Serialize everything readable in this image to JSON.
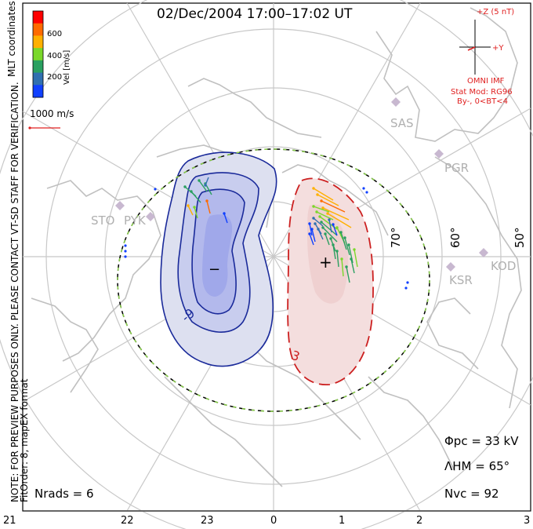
{
  "title": "02/Dec/2004  17:00–17:02  UT",
  "colorbar": {
    "label": "Vel [m/s]",
    "ticks": [
      "600",
      "400",
      "200"
    ],
    "colors": [
      "#ff0000",
      "#ff6a00",
      "#ffb000",
      "#7ad82a",
      "#2aa060",
      "#3070b0",
      "#1040ff"
    ]
  },
  "mlt_label": "MLT coordinates",
  "ref_vector_label": "1000 m/s",
  "imf": {
    "z_label": "+Z (5 nT)",
    "y_label": "+Y",
    "source": "OMNI IMF",
    "model": "Stat Mod: RG96",
    "condition": "By-, 0<BT<4"
  },
  "stations": [
    "SAS",
    "PGR",
    "STO",
    "PYK",
    "KOD",
    "KSR"
  ],
  "lat_labels": [
    "70°",
    "60°",
    "50°"
  ],
  "contours": {
    "negative_label": "-9",
    "positive_label": "3",
    "min_marker": "−",
    "max_marker": "+"
  },
  "stats": {
    "phi_pc": "Φpc = 33 kV",
    "lambda_hm": "ΛHM = 65°",
    "n_vc": "Nvc = 92",
    "n_rads": "Nrads = 6"
  },
  "mlt_ticks": [
    "21",
    "22",
    "23",
    "0",
    "1",
    "2",
    "3"
  ],
  "notes": {
    "preview": "NOTE: FOR PREVIEW PURPOSES ONLY. PLEASE CONTACT VT-SD STAFF FOR VERIFICATION.",
    "fit": "FitOrder: 8, mapEX format"
  }
}
